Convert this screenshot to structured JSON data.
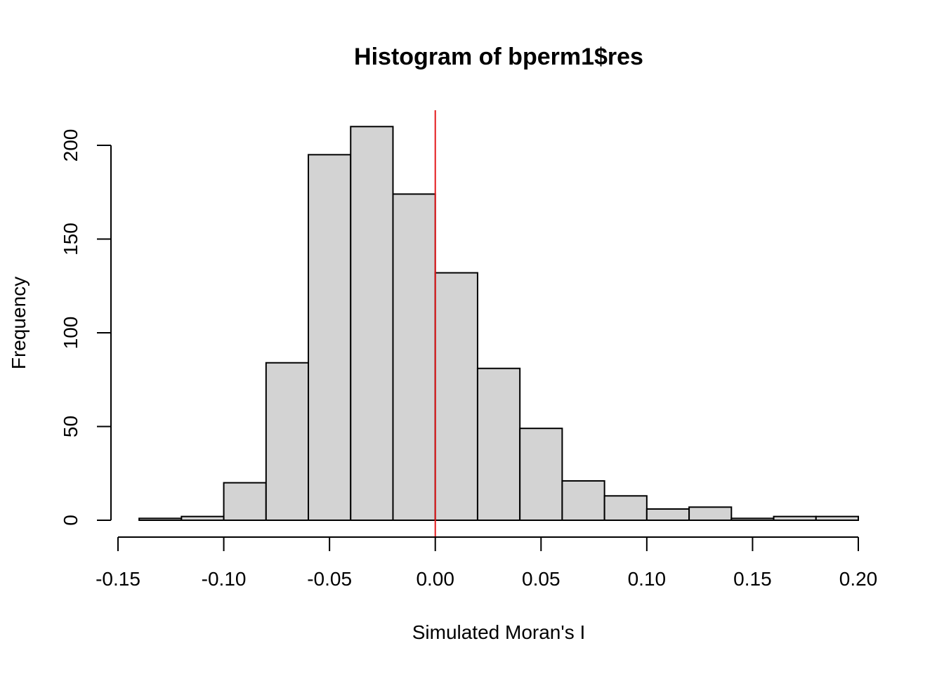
{
  "chart_data": {
    "type": "bar",
    "title": "Histogram of bperm1$res",
    "xlabel": "Simulated Moran's I",
    "ylabel": "Frequency",
    "bin_edges": [
      -0.14,
      -0.12,
      -0.1,
      -0.08,
      -0.06,
      -0.04,
      -0.02,
      0.0,
      0.02,
      0.04,
      0.06,
      0.08,
      0.1,
      0.12,
      0.14,
      0.16,
      0.18,
      0.2
    ],
    "values": [
      1,
      2,
      20,
      84,
      195,
      210,
      174,
      132,
      81,
      49,
      21,
      13,
      6,
      7,
      1,
      2,
      2
    ],
    "xlim": [
      -0.15,
      0.2
    ],
    "ylim": [
      0,
      210
    ],
    "x_ticks": [
      -0.15,
      -0.1,
      -0.05,
      0.0,
      0.05,
      0.1,
      0.15,
      0.2
    ],
    "x_tick_labels": [
      "-0.15",
      "-0.10",
      "-0.05",
      "0.00",
      "0.05",
      "0.10",
      "0.15",
      "0.20"
    ],
    "y_ticks": [
      0,
      50,
      100,
      150,
      200
    ],
    "y_tick_labels": [
      "0",
      "50",
      "100",
      "150",
      "200"
    ],
    "reference_line": {
      "x": 0.0,
      "color": "#e31a1c"
    },
    "bar_fill": "#d3d3d3",
    "bar_stroke": "#000000"
  }
}
